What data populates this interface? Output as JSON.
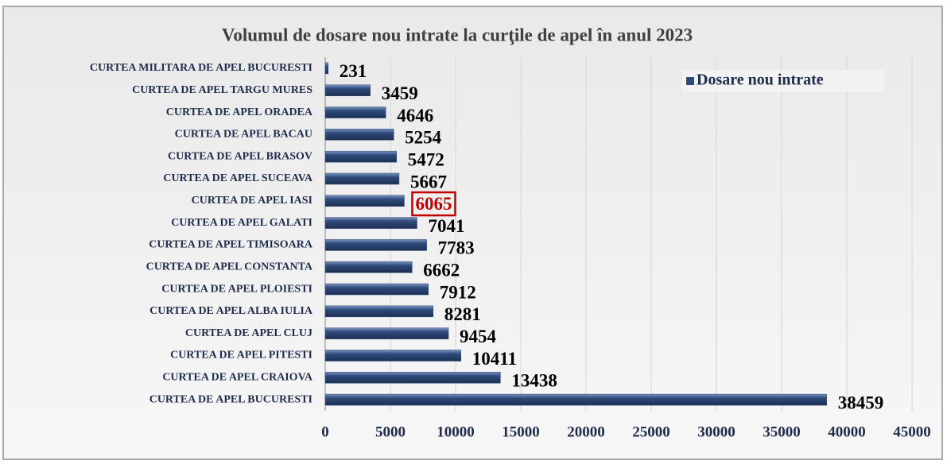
{
  "chart_data": {
    "type": "bar",
    "orientation": "horizontal",
    "title": "Volumul de dosare nou intrate la curţile de apel în anul 2023",
    "categories": [
      "CURTEA MILITARA DE APEL BUCURESTI",
      "CURTEA DE APEL TARGU MURES",
      "CURTEA DE APEL ORADEA",
      "CURTEA DE APEL BACAU",
      "CURTEA DE APEL BRASOV",
      "CURTEA DE APEL SUCEAVA",
      "CURTEA DE APEL IASI",
      "CURTEA DE APEL GALATI",
      "CURTEA DE APEL TIMISOARA",
      "CURTEA DE APEL CONSTANTA",
      "CURTEA DE APEL PLOIESTI",
      "CURTEA DE APEL ALBA IULIA",
      "CURTEA DE APEL CLUJ",
      "CURTEA DE APEL PITESTI",
      "CURTEA DE APEL CRAIOVA",
      "CURTEA DE APEL BUCURESTI"
    ],
    "series": [
      {
        "name": "Dosare nou intrate",
        "color": "#2f4b7c",
        "values": [
          231,
          3459,
          4646,
          5254,
          5472,
          5667,
          6065,
          7041,
          7783,
          6662,
          7912,
          8281,
          9454,
          10411,
          13438,
          38459
        ]
      }
    ],
    "xlim": [
      0,
      45000
    ],
    "xticks": [
      0,
      5000,
      10000,
      15000,
      20000,
      25000,
      30000,
      35000,
      40000,
      45000
    ],
    "grid": true,
    "legend": "top-right",
    "highlight_index": 6,
    "highlight_color": "#c00000"
  }
}
